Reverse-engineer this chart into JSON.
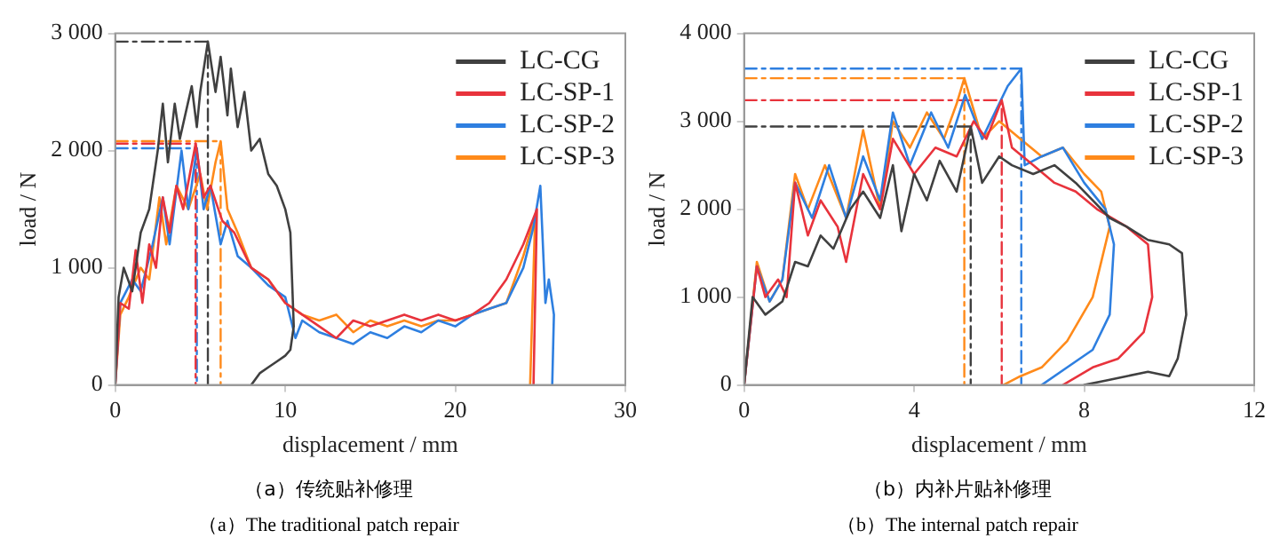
{
  "chart_data": [
    {
      "type": "line",
      "title": "（a）传统贴补修理",
      "subtitle": "（a）The traditional patch repair",
      "xlabel": "displacement / mm",
      "ylabel": "load / N",
      "xlim": [
        0,
        30
      ],
      "xticks": [
        0,
        10,
        20,
        30
      ],
      "ylim": [
        0,
        3000
      ],
      "yticks": [
        0,
        {
          "value": 1000,
          "label": "1 000"
        },
        {
          "value": 2000,
          "label": "2 000"
        },
        {
          "value": 3000,
          "label": "3 000"
        }
      ],
      "legend": "top right",
      "series": [
        {
          "name": "LC-CG",
          "color": "#404040",
          "x": [
            0,
            0.2,
            0.5,
            1.0,
            1.5,
            2.0,
            2.5,
            2.8,
            3.1,
            3.5,
            3.8,
            4.5,
            4.8,
            5.0,
            5.45,
            5.9,
            6.2,
            6.6,
            6.8,
            7.2,
            7.6,
            8.0,
            8.5,
            9.0,
            9.5,
            10.0,
            10.3,
            10.4,
            10.5,
            10.3,
            10.0,
            9.5,
            9.0,
            8.5,
            8.0
          ],
          "values": [
            0,
            750,
            1000,
            800,
            1300,
            1500,
            2000,
            2400,
            1900,
            2400,
            2100,
            2550,
            2200,
            2500,
            2930,
            2500,
            2800,
            2300,
            2700,
            2200,
            2500,
            2000,
            2100,
            1800,
            1700,
            1500,
            1300,
            900,
            500,
            300,
            250,
            200,
            150,
            100,
            0
          ]
        },
        {
          "name": "LC-SP-1",
          "color": "#e8333c",
          "x": [
            0,
            0.3,
            0.8,
            1.2,
            1.6,
            2.0,
            2.4,
            2.8,
            3.2,
            3.6,
            4.0,
            4.73,
            5.2,
            5.6,
            6.3,
            7.0,
            8,
            9,
            10,
            11,
            12,
            13,
            14,
            15,
            16,
            17,
            18,
            19,
            20,
            21,
            22,
            23,
            24,
            24.8,
            24.6
          ],
          "values": [
            0,
            700,
            650,
            1150,
            700,
            1200,
            1000,
            1600,
            1300,
            1700,
            1500,
            2060,
            1600,
            1700,
            1400,
            1300,
            1000,
            900,
            700,
            600,
            500,
            400,
            550,
            500,
            550,
            600,
            550,
            600,
            550,
            600,
            700,
            900,
            1200,
            1500,
            0
          ]
        },
        {
          "name": "LC-SP-2",
          "color": "#2e7fe0",
          "x": [
            0,
            0.3,
            1.0,
            1.5,
            2.2,
            2.8,
            3.2,
            3.9,
            4.3,
            4.8,
            5.2,
            5.6,
            6.2,
            6.6,
            7.2,
            8,
            9,
            10,
            10.6,
            11,
            12,
            13,
            14,
            15,
            16,
            17,
            18,
            19,
            20,
            21,
            22,
            23,
            24,
            24.6,
            25.0,
            25.3,
            25.5,
            25.8,
            25.7
          ],
          "values": [
            0,
            700,
            900,
            800,
            1200,
            1600,
            1200,
            2000,
            1500,
            2020,
            1500,
            1700,
            1200,
            1400,
            1100,
            1000,
            850,
            750,
            400,
            550,
            450,
            400,
            350,
            450,
            400,
            500,
            450,
            550,
            500,
            600,
            650,
            700,
            1000,
            1350,
            1700,
            700,
            900,
            600,
            0
          ]
        },
        {
          "name": "LC-SP-3",
          "color": "#ff8a1a",
          "x": [
            0,
            0.3,
            0.8,
            1.5,
            2.0,
            2.6,
            3.0,
            3.6,
            4.3,
            5.0,
            5.4,
            5.9,
            6.2,
            6.6,
            7.2,
            8,
            9,
            10,
            11,
            12,
            13,
            14,
            15,
            16,
            17,
            18,
            19,
            20,
            21,
            22,
            23,
            24,
            24.7,
            24.4
          ],
          "values": [
            0,
            600,
            750,
            1000,
            900,
            1600,
            1200,
            1700,
            1500,
            1800,
            1500,
            1900,
            2080,
            1500,
            1300,
            1000,
            900,
            700,
            600,
            550,
            600,
            450,
            550,
            500,
            550,
            500,
            550,
            550,
            600,
            650,
            700,
            1100,
            1450,
            0
          ]
        },
        {
          "color": "#404040",
          "line_style": "dashed",
          "x": [
            0,
            5.45,
            5.45
          ],
          "values": [
            2930,
            2930,
            0
          ]
        },
        {
          "color": "#e8333c",
          "line_style": "dashed",
          "x": [
            0,
            4.73,
            4.73
          ],
          "values": [
            2060,
            2060,
            0
          ]
        },
        {
          "color": "#2e7fe0",
          "line_style": "dashed",
          "x": [
            0,
            4.8,
            4.8
          ],
          "values": [
            2020,
            2020,
            0
          ]
        },
        {
          "color": "#ff8a1a",
          "line_style": "dashed",
          "x": [
            0,
            6.2,
            6.2
          ],
          "values": [
            2080,
            2080,
            0
          ]
        }
      ]
    },
    {
      "type": "line",
      "title": "（b）内补片贴补修理",
      "subtitle": "（b）The internal patch repair",
      "xlabel": "displacement / mm",
      "ylabel": "load / N",
      "xlim": [
        0,
        12
      ],
      "xticks": [
        0,
        4,
        8,
        12
      ],
      "ylim": [
        0,
        4000
      ],
      "yticks": [
        0,
        {
          "value": 1000,
          "label": "1 000"
        },
        {
          "value": 2000,
          "label": "2 000"
        },
        {
          "value": 3000,
          "label": "3 000"
        },
        {
          "value": 4000,
          "label": "4 000"
        }
      ],
      "legend": "top right",
      "series": [
        {
          "name": "LC-CG",
          "color": "#404040",
          "x": [
            0,
            0.2,
            0.5,
            0.9,
            1.2,
            1.5,
            1.8,
            2.1,
            2.5,
            2.8,
            3.2,
            3.5,
            3.7,
            4.0,
            4.3,
            4.6,
            5.0,
            5.33,
            5.6,
            6.0,
            6.3,
            6.8,
            7.3,
            7.8,
            8.2,
            8.6,
            9.0,
            9.5,
            10.0,
            10.3,
            10.4,
            10.2,
            10.0,
            9.5,
            9.0,
            8.5,
            8.0
          ],
          "values": [
            0,
            1000,
            800,
            950,
            1400,
            1350,
            1700,
            1550,
            2000,
            2200,
            1900,
            2500,
            1750,
            2400,
            2100,
            2550,
            2200,
            2940,
            2300,
            2600,
            2500,
            2400,
            2500,
            2300,
            2100,
            1900,
            1800,
            1650,
            1600,
            1500,
            800,
            300,
            100,
            150,
            100,
            50,
            0
          ]
        },
        {
          "name": "LC-SP-1",
          "color": "#e8333c",
          "x": [
            0,
            0.3,
            0.5,
            0.8,
            1.0,
            1.2,
            1.5,
            1.8,
            2.2,
            2.4,
            2.8,
            3.2,
            3.5,
            4.0,
            4.5,
            5.0,
            5.4,
            5.7,
            6.06,
            6.3,
            6.8,
            7.3,
            7.8,
            8.3,
            9.0,
            9.5,
            9.6,
            9.4,
            8.8,
            8.2,
            7.5
          ],
          "values": [
            0,
            1350,
            1000,
            1200,
            1000,
            2300,
            1700,
            2100,
            1800,
            1400,
            2400,
            2000,
            2800,
            2400,
            2700,
            2600,
            3000,
            2800,
            3240,
            2700,
            2500,
            2300,
            2200,
            2000,
            1800,
            1600,
            1000,
            600,
            300,
            200,
            0
          ]
        },
        {
          "name": "LC-SP-2",
          "color": "#2e7fe0",
          "x": [
            0,
            0.3,
            0.6,
            0.9,
            1.2,
            1.6,
            2.0,
            2.4,
            2.8,
            3.2,
            3.5,
            3.9,
            4.4,
            4.8,
            5.2,
            5.6,
            6.2,
            6.52,
            6.6,
            7.0,
            7.5,
            8.0,
            8.5,
            8.7,
            8.6,
            8.2,
            7.6,
            7.0
          ],
          "values": [
            0,
            1350,
            950,
            1200,
            2300,
            1900,
            2500,
            1900,
            2600,
            2100,
            3100,
            2500,
            3100,
            2700,
            3300,
            2800,
            3400,
            3600,
            2500,
            2600,
            2700,
            2300,
            2000,
            1600,
            800,
            400,
            200,
            0
          ]
        },
        {
          "name": "LC-SP-3",
          "color": "#ff8a1a",
          "x": [
            0,
            0.3,
            0.6,
            0.9,
            1.2,
            1.5,
            1.9,
            2.4,
            2.8,
            3.2,
            3.5,
            3.9,
            4.3,
            4.7,
            5.0,
            5.18,
            5.6,
            6.0,
            6.5,
            7.0,
            7.5,
            8.0,
            8.4,
            8.6,
            8.2,
            7.6,
            7.0,
            6.5,
            6.1
          ],
          "values": [
            0,
            1400,
            950,
            1200,
            2400,
            2000,
            2500,
            1900,
            2900,
            2000,
            3000,
            2700,
            3100,
            2800,
            3200,
            3490,
            2800,
            3000,
            2800,
            2600,
            2700,
            2400,
            2200,
            1800,
            1000,
            500,
            200,
            100,
            0
          ]
        },
        {
          "color": "#404040",
          "line_style": "dashed",
          "x": [
            0,
            5.33,
            5.33
          ],
          "values": [
            2940,
            2940,
            0
          ]
        },
        {
          "color": "#e8333c",
          "line_style": "dashed",
          "x": [
            0,
            6.06,
            6.06
          ],
          "values": [
            3240,
            3240,
            0
          ]
        },
        {
          "color": "#2e7fe0",
          "line_style": "dashed",
          "x": [
            0,
            6.52,
            6.52
          ],
          "values": [
            3600,
            3600,
            0
          ]
        },
        {
          "color": "#ff8a1a",
          "line_style": "dashed",
          "x": [
            0,
            5.18,
            5.18
          ],
          "values": [
            3490,
            3490,
            0
          ]
        }
      ]
    }
  ]
}
